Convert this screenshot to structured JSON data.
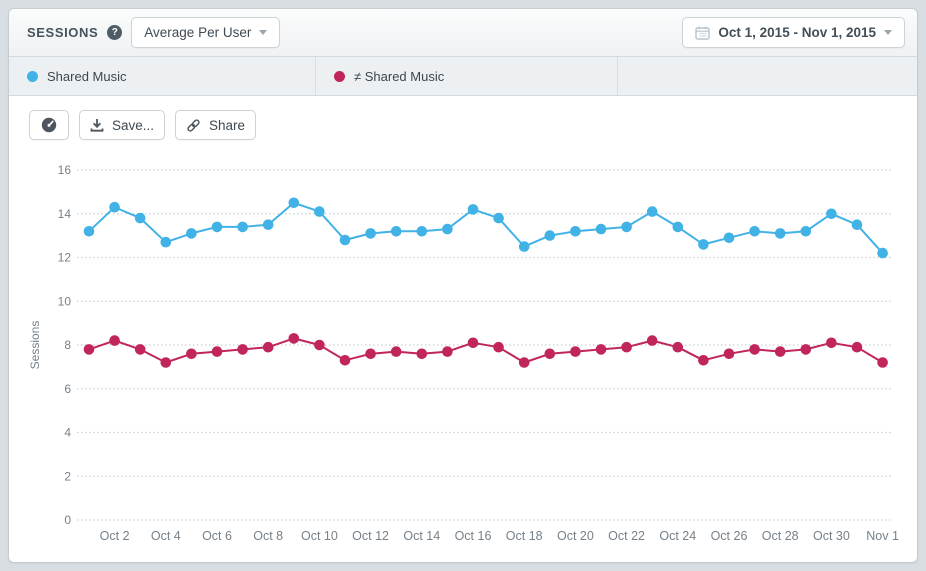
{
  "header": {
    "title": "SESSIONS",
    "help_glyph": "?",
    "metric_dropdown": {
      "value": "Average Per User"
    },
    "date_range": {
      "value": "Oct 1, 2015 - Nov 1, 2015"
    }
  },
  "legend": {
    "series": [
      {
        "label": "Shared Music",
        "color": "#41b2e5"
      },
      {
        "label": "≠ Shared Music",
        "color": "#c0255c"
      }
    ]
  },
  "toolbar": {
    "dashboard_icon": "gauge",
    "save_label": "Save...",
    "share_label": "Share"
  },
  "chart_data": {
    "type": "line",
    "title": "",
    "xlabel": "",
    "ylabel": "Sessions",
    "ylim": [
      0,
      16
    ],
    "yticks": [
      0,
      2,
      4,
      6,
      8,
      10,
      12,
      14,
      16
    ],
    "grid": "horizontal-dotted",
    "legend_position": "top-tabs",
    "x": [
      "Oct 1",
      "Oct 2",
      "Oct 3",
      "Oct 4",
      "Oct 5",
      "Oct 6",
      "Oct 7",
      "Oct 8",
      "Oct 9",
      "Oct 10",
      "Oct 11",
      "Oct 12",
      "Oct 13",
      "Oct 14",
      "Oct 15",
      "Oct 16",
      "Oct 17",
      "Oct 18",
      "Oct 19",
      "Oct 20",
      "Oct 21",
      "Oct 22",
      "Oct 23",
      "Oct 24",
      "Oct 25",
      "Oct 26",
      "Oct 27",
      "Oct 28",
      "Oct 29",
      "Oct 30",
      "Oct 31",
      "Nov 1"
    ],
    "xtick_labels": [
      "Oct 2",
      "Oct 4",
      "Oct 6",
      "Oct 8",
      "Oct 10",
      "Oct 12",
      "Oct 14",
      "Oct 16",
      "Oct 18",
      "Oct 20",
      "Oct 22",
      "Oct 24",
      "Oct 26",
      "Oct 28",
      "Oct 30",
      "Nov 1"
    ],
    "series": [
      {
        "name": "Shared Music",
        "color": "#41b2e5",
        "values": [
          13.2,
          14.3,
          13.8,
          12.7,
          13.1,
          13.4,
          13.4,
          13.5,
          14.5,
          14.1,
          12.8,
          13.1,
          13.2,
          13.2,
          13.3,
          14.2,
          13.8,
          12.5,
          13.0,
          13.2,
          13.3,
          13.4,
          14.1,
          13.4,
          12.6,
          12.9,
          13.2,
          13.1,
          13.2,
          14.0,
          13.5,
          12.2
        ]
      },
      {
        "name": "≠ Shared Music",
        "color": "#c0255c",
        "values": [
          7.8,
          8.2,
          7.8,
          7.2,
          7.6,
          7.7,
          7.8,
          7.9,
          8.3,
          8.0,
          7.3,
          7.6,
          7.7,
          7.6,
          7.7,
          8.1,
          7.9,
          7.2,
          7.6,
          7.7,
          7.8,
          7.9,
          8.2,
          7.9,
          7.3,
          7.6,
          7.8,
          7.7,
          7.8,
          8.1,
          7.9,
          7.2
        ]
      }
    ],
    "axis_text_color": "#76818a",
    "gridline_color": "#cbd1d6"
  }
}
